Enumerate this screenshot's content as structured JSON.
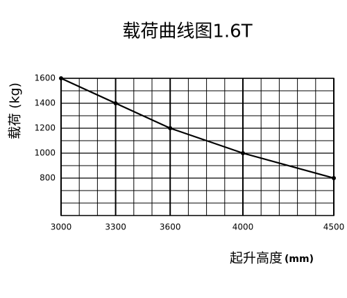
{
  "chart_data": {
    "type": "line",
    "title": "载荷曲线图1.6T",
    "y_label": "载荷 (kg)",
    "x_label": "起升高度",
    "x_label_unit": "(mm)",
    "x": [
      3000,
      3300,
      3600,
      4000,
      4500
    ],
    "values": [
      1600,
      1400,
      1200,
      1000,
      800
    ],
    "color": "#000000",
    "xlim": [
      3000,
      4500
    ],
    "xticks": [
      3000,
      3300,
      3600,
      4000,
      4500
    ],
    "ylim": [
      500,
      1600
    ],
    "yticks": [
      800,
      1000,
      1200,
      1400,
      1600
    ],
    "x_minor_ticks": [
      3100,
      3200,
      3400,
      3500,
      3700,
      3800,
      3900,
      4100,
      4200,
      4300,
      4400
    ],
    "y_minor_ticks": [
      500,
      600,
      700,
      900,
      1100,
      1300,
      1500
    ],
    "grid": true
  }
}
